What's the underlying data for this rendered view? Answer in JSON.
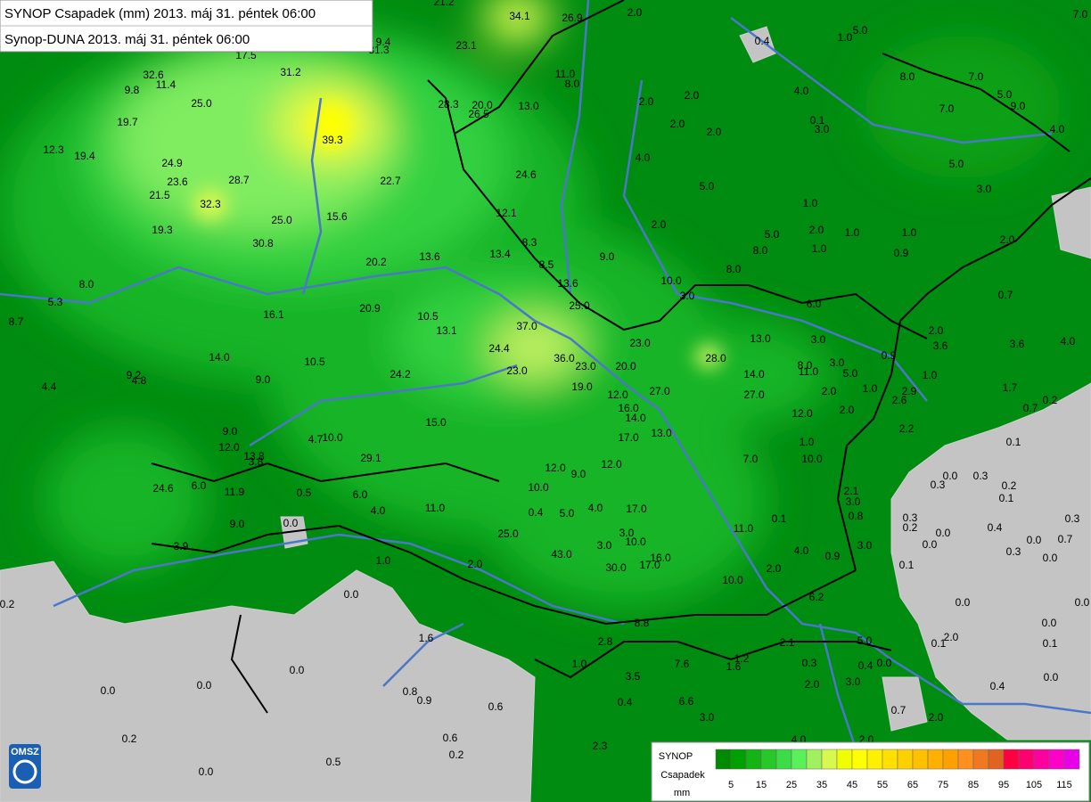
{
  "header": {
    "line1": "SYNOP Csapadek (mm) 2013. máj 31. péntek 06:00",
    "line2": "Synop-DUNA 2013. máj 31. péntek 06:00"
  },
  "logo": "OMSZ",
  "stations": [
    "34.1",
    "26.9",
    "21.2",
    "2.0",
    "1.0",
    "5.0",
    "0.4",
    "7.0",
    "8.0",
    "7.0",
    "5.0",
    "9.0",
    "7.0",
    "4.0",
    "17.5",
    "9.4",
    "31.3",
    "23.1",
    "31.2",
    "32.6",
    "11.4",
    "9.8",
    "25.0",
    "19.7",
    "11.0",
    "8.0",
    "28.3",
    "20.0",
    "26.5",
    "13.0",
    "2.0",
    "2.0",
    "4.0",
    "0.1",
    "3.0",
    "2.0",
    "2.0",
    "39.3",
    "12.3",
    "19.4",
    "24.9",
    "4.0",
    "5.0",
    "23.6",
    "28.7",
    "22.7",
    "24.6",
    "5.0",
    "3.0",
    "21.5",
    "32.3",
    "1.0",
    "12.1",
    "25.0",
    "15.6",
    "2.0",
    "2.0",
    "1.0",
    "1.0",
    "19.3",
    "5.0",
    "8.0",
    "1.0",
    "30.8",
    "8.3",
    "13.4",
    "9.0",
    "0.9",
    "2.0",
    "20.2",
    "13.6",
    "8.5",
    "8.0",
    "10.0",
    "13.6",
    "8.0",
    "5.3",
    "3.0",
    "25.0",
    "0.7",
    "6.0",
    "20.9",
    "10.5",
    "16.1",
    "37.0",
    "13.1",
    "8.7",
    "2.0",
    "13.0",
    "23.0",
    "3.0",
    "3.6",
    "3.6",
    "4.0",
    "24.4",
    "14.0",
    "10.5",
    "36.0",
    "28.0",
    "23.0",
    "20.0",
    "0.9",
    "8.0",
    "3.0",
    "11.0",
    "5.0",
    "1.0",
    "2.9",
    "24.2",
    "23.0",
    "14.0",
    "9.2",
    "4.8",
    "9.0",
    "19.0",
    "27.0",
    "27.0",
    "2.0",
    "1.0",
    "1.7",
    "0.2",
    "4.4",
    "12.0",
    "2.6",
    "0.7",
    "16.0",
    "14.0",
    "12.0",
    "2.0",
    "9.0",
    "13.0",
    "17.0",
    "15.0",
    "4.7",
    "10.0",
    "1.0",
    "2.2",
    "0.1",
    "12.0",
    "29.1",
    "7.0",
    "10.0",
    "13.8",
    "3.8",
    "12.0",
    "12.0",
    "9.0",
    "24.6",
    "6.0",
    "0.0",
    "0.3",
    "0.3",
    "10.0",
    "11.9",
    "0.5",
    "6.0",
    "2.1",
    "0.2",
    "0.1",
    "3.0",
    "11.0",
    "4.0",
    "0.4",
    "5.0",
    "4.0",
    "17.0",
    "0.8",
    "0.1",
    "0.3",
    "0.3",
    "9.0",
    "0.0",
    "0.2",
    "0.4",
    "25.0",
    "3.0",
    "10.0",
    "11.0",
    "0.0",
    "0.0",
    "0.0",
    "0.7",
    "3.9",
    "3.0",
    "4.0",
    "0.9",
    "3.0",
    "43.0",
    "16.0",
    "0.3",
    "0.0",
    "1.0",
    "2.0",
    "30.0",
    "17.0",
    "2.0",
    "0.1",
    "10.0",
    "0.0",
    "6.2",
    "0.2",
    "0.0",
    "0.0",
    "8.8",
    "1.6",
    "2.8",
    "2.1",
    "5.0",
    "2.0",
    "0.1",
    "0.0",
    "0.1",
    "1.0",
    "7.6",
    "1.2",
    "1.6",
    "0.3",
    "0.4",
    "0.0",
    "0.0",
    "3.5",
    "2.0",
    "3.0",
    "0.0",
    "0.0",
    "0.0",
    "0.8",
    "0.9",
    "0.4",
    "0.4",
    "6.6",
    "0.6",
    "0.7",
    "2.0",
    "3.0",
    "0.2",
    "0.6",
    "2.3",
    "0.2",
    "0.5",
    "0.0",
    "4.0",
    "2.0"
  ],
  "legend": {
    "title": "SYNOP",
    "subtitle": "Csapadek",
    "unit": "mm",
    "colors": [
      "#008a00",
      "#00a000",
      "#14b414",
      "#28c828",
      "#3cdc46",
      "#5af05a",
      "#a0f060",
      "#d8f850",
      "#f0ff00",
      "#ffff00",
      "#fff000",
      "#ffe000",
      "#ffd000",
      "#ffc000",
      "#ffb000",
      "#ffa000",
      "#ff9020",
      "#f07820",
      "#e06420",
      "#ff0040",
      "#ff0070",
      "#ff00a0",
      "#ff00c8",
      "#e800e8"
    ],
    "ticks": [
      5,
      15,
      25,
      35,
      45,
      55,
      65,
      75,
      85,
      95,
      105,
      115
    ]
  }
}
